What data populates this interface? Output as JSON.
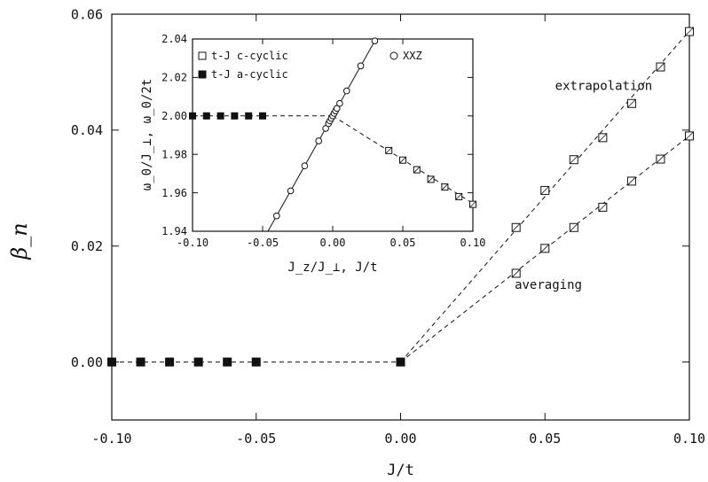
{
  "chart_data": [
    {
      "type": "line",
      "xlabel": "J/t",
      "ylabel": "β_n",
      "xlim": [
        -0.1,
        0.1
      ],
      "ylim": [
        -0.01,
        0.06
      ],
      "x_ticks": [
        "-0.10",
        "-0.05",
        "0.00",
        "0.05",
        "0.10"
      ],
      "y_ticks": [
        "0.00",
        "0.02",
        "0.04",
        "0.06"
      ],
      "x_tick_values": [
        -0.1,
        -0.05,
        0.0,
        0.05,
        0.1
      ],
      "y_tick_values": [
        0.0,
        0.02,
        0.04,
        0.06
      ],
      "annotations": [
        "extrapolation",
        "averaging"
      ],
      "series": [
        {
          "marker": "filled-square",
          "points": [
            [
              -0.1,
              0.0
            ],
            [
              -0.09,
              0.0
            ],
            [
              -0.08,
              0.0
            ],
            [
              -0.07,
              0.0
            ],
            [
              -0.06,
              0.0
            ],
            [
              -0.05,
              0.0
            ],
            [
              0.0,
              0.0
            ]
          ]
        },
        {
          "marker": "open-square",
          "points": [
            [
              0.04,
              0.0232
            ],
            [
              0.05,
              0.0296
            ],
            [
              0.06,
              0.0349
            ],
            [
              0.07,
              0.0387
            ],
            [
              0.08,
              0.0446
            ],
            [
              0.09,
              0.0509
            ],
            [
              0.1,
              0.057
            ]
          ]
        },
        {
          "marker": "open-square",
          "points": [
            [
              0.04,
              0.0153
            ],
            [
              0.05,
              0.0196
            ],
            [
              0.06,
              0.0232
            ],
            [
              0.07,
              0.0267
            ],
            [
              0.08,
              0.0312
            ],
            [
              0.09,
              0.035
            ],
            [
              0.1,
              0.039
            ]
          ]
        }
      ],
      "fit_lines": [
        {
          "style": "dashed",
          "points": [
            [
              -0.1,
              0.0
            ],
            [
              0.0,
              0.0
            ]
          ]
        },
        {
          "style": "dashed",
          "points": [
            [
              0.0,
              0.0
            ],
            [
              0.1,
              0.0571
            ]
          ]
        },
        {
          "style": "dashed",
          "points": [
            [
              0.0,
              0.0
            ],
            [
              0.1,
              0.039
            ]
          ]
        }
      ]
    },
    {
      "type": "line",
      "inset": true,
      "xlabel": "J_z/J_⊥, J/t",
      "ylabel": "ω_0/J_⊥, ω_0/2t",
      "xlim": [
        -0.1,
        0.1
      ],
      "ylim": [
        1.94,
        2.04
      ],
      "x_ticks": [
        "-0.10",
        "-0.05",
        "0.00",
        "0.05",
        "0.10"
      ],
      "y_ticks": [
        "1.94",
        "1.96",
        "1.98",
        "2.00",
        "2.02",
        "2.04"
      ],
      "x_tick_values": [
        -0.1,
        -0.05,
        0.0,
        0.05,
        0.1
      ],
      "y_tick_values": [
        1.94,
        1.96,
        1.98,
        2.0,
        2.02,
        2.04
      ],
      "legend": [
        {
          "label": "t-J c-cyclic",
          "marker": "open-square"
        },
        {
          "label": "t-J a-cyclic",
          "marker": "filled-square"
        },
        {
          "label": "XXZ",
          "marker": "open-circle"
        }
      ],
      "legend_position": "top",
      "series": [
        {
          "name": "t-J c-cyclic",
          "marker": "open-square",
          "points": [
            [
              0.04,
              1.982
            ],
            [
              0.05,
              1.977
            ],
            [
              0.06,
              1.972
            ],
            [
              0.07,
              1.967
            ],
            [
              0.08,
              1.963
            ],
            [
              0.09,
              1.958
            ],
            [
              0.1,
              1.954
            ]
          ]
        },
        {
          "name": "t-J a-cyclic",
          "marker": "filled-square",
          "points": [
            [
              -0.1,
              2.0
            ],
            [
              -0.09,
              2.0
            ],
            [
              -0.08,
              2.0
            ],
            [
              -0.07,
              2.0
            ],
            [
              -0.06,
              2.0
            ],
            [
              -0.05,
              2.0
            ]
          ]
        },
        {
          "name": "XXZ",
          "marker": "open-circle",
          "points": [
            [
              -0.04,
              1.948
            ],
            [
              -0.03,
              1.961
            ],
            [
              -0.02,
              1.974
            ],
            [
              -0.01,
              1.987
            ],
            [
              -0.005,
              1.9935
            ],
            [
              -0.003,
              1.996
            ],
            [
              -0.002,
              1.9974
            ],
            [
              -0.001,
              1.9987
            ],
            [
              0.0,
              2.0
            ],
            [
              0.001,
              2.0013
            ],
            [
              0.002,
              2.0026
            ],
            [
              0.003,
              2.0039
            ],
            [
              0.005,
              2.0065
            ],
            [
              0.01,
              2.013
            ],
            [
              0.02,
              2.026
            ],
            [
              0.03,
              2.039
            ]
          ]
        }
      ],
      "fit_lines": [
        {
          "style": "dashed",
          "points": [
            [
              -0.1,
              2.0
            ],
            [
              0.0,
              2.0
            ]
          ]
        },
        {
          "style": "dashed",
          "points": [
            [
              0.0,
              2.0
            ],
            [
              0.1,
              1.9545
            ]
          ]
        },
        {
          "style": "solid",
          "points": [
            [
              -0.0462,
              1.94
            ],
            [
              0.0308,
              2.04
            ]
          ]
        }
      ]
    }
  ]
}
